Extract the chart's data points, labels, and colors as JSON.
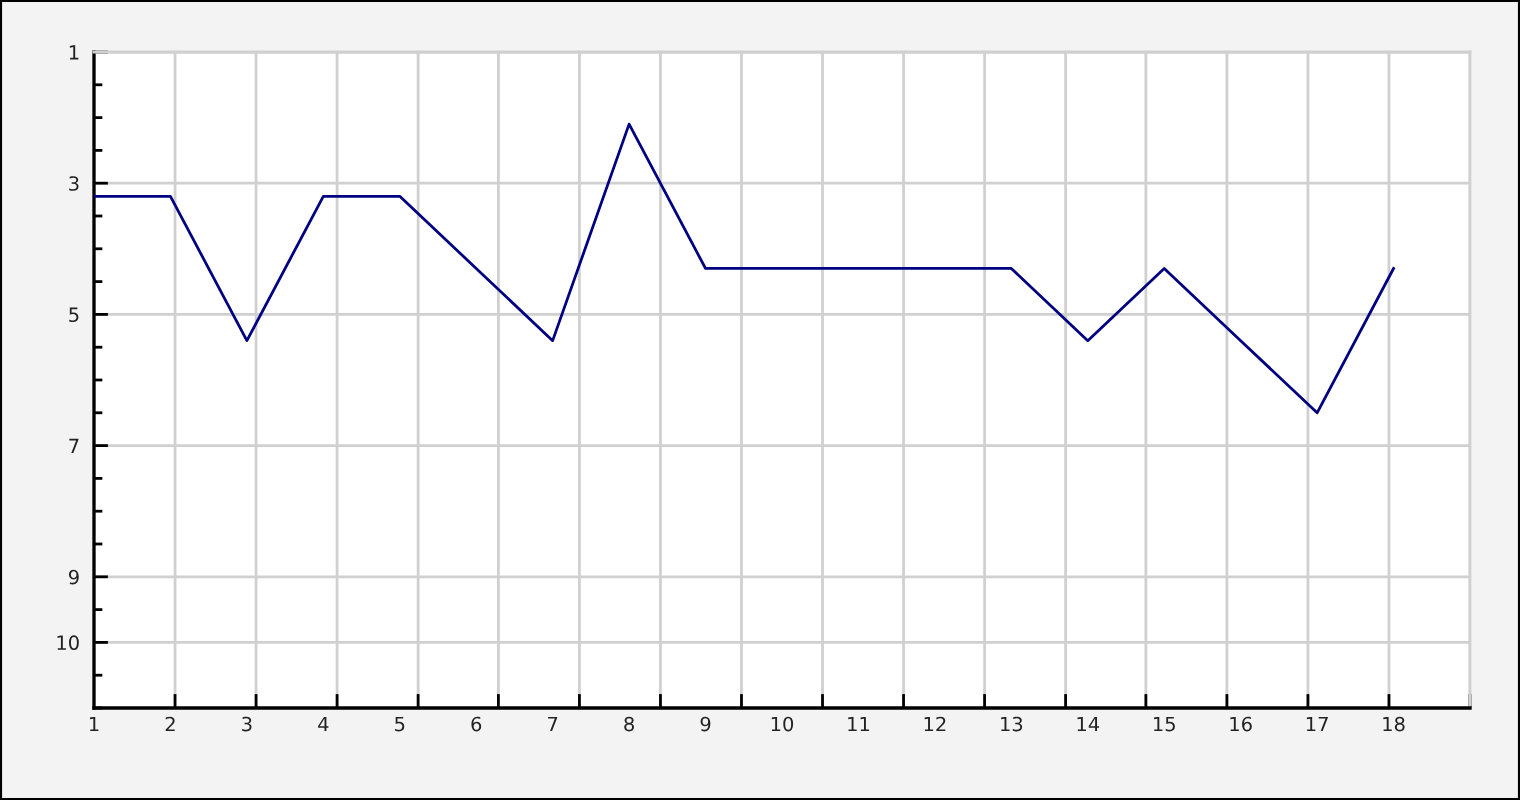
{
  "chart_data": {
    "type": "line",
    "x": [
      1,
      2,
      3,
      4,
      5,
      6,
      7,
      8,
      9,
      10,
      11,
      12,
      13,
      14,
      15,
      16,
      17,
      18
    ],
    "series": [
      {
        "color": "#000080",
        "values": [
          3.2,
          3.2,
          5.4,
          3.2,
          3.2,
          4.3,
          5.4,
          2.1,
          4.3,
          4.3,
          4.3,
          4.3,
          4.3,
          5.4,
          4.3,
          5.4,
          6.5,
          4.3
        ]
      }
    ],
    "xlim": [
      1,
      19
    ],
    "xticks": [
      1,
      2,
      3,
      4,
      5,
      6,
      7,
      8,
      9,
      10,
      11,
      12,
      13,
      14,
      15,
      16,
      17,
      18,
      {
        "value": 2.06,
        "label": null
      },
      {
        "value": 3.12,
        "label": null
      },
      {
        "value": 4.18,
        "label": null
      },
      {
        "value": 5.24,
        "label": null
      },
      {
        "value": 6.29,
        "label": null
      },
      {
        "value": 7.35,
        "label": null
      },
      {
        "value": 8.41,
        "label": null
      },
      {
        "value": 9.47,
        "label": null
      },
      {
        "value": 10.53,
        "label": null
      },
      {
        "value": 11.59,
        "label": null
      },
      {
        "value": 12.65,
        "label": null
      },
      {
        "value": 13.71,
        "label": null
      },
      {
        "value": 14.76,
        "label": null
      },
      {
        "value": 15.82,
        "label": null
      },
      {
        "value": 16.88,
        "label": null
      },
      {
        "value": 17.94,
        "label": null
      },
      {
        "value": 19,
        "label": null
      }
    ],
    "ylim": [
      11,
      1
    ],
    "yticks": [
      1,
      {
        "value": 1.5,
        "label": null
      },
      {
        "value": 2,
        "label": null
      },
      {
        "value": 2.5,
        "label": null
      },
      3,
      {
        "value": 3.5,
        "label": null
      },
      {
        "value": 4,
        "label": null
      },
      {
        "value": 4.5,
        "label": null
      },
      5,
      {
        "value": 5.5,
        "label": null
      },
      {
        "value": 6,
        "label": null
      },
      {
        "value": 6.5,
        "label": null
      },
      7,
      {
        "value": 7.5,
        "label": null
      },
      {
        "value": 8,
        "label": null
      },
      {
        "value": 8.5,
        "label": null
      },
      9,
      {
        "value": 9.5,
        "label": null
      },
      10,
      {
        "value": 10.5,
        "label": null
      },
      {
        "value": 11,
        "label": null
      }
    ],
    "grid": true,
    "marker": "none",
    "line_style": "solid"
  }
}
